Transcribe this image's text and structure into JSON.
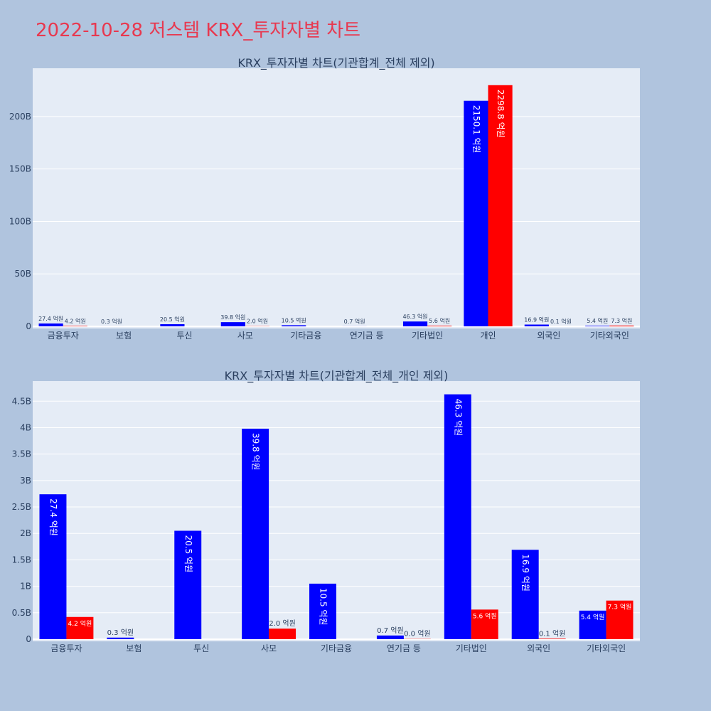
{
  "page_title": "2022-10-28 저스템 KRX_투자자별 차트",
  "colors": {
    "background": "#b0c4de",
    "plot_bg": "#e5ecf6",
    "buy": "#0000ff",
    "sell": "#ff0000",
    "title": "#e8384f",
    "text": "#2a3f5f"
  },
  "chart_data": [
    {
      "type": "bar",
      "title": "KRX_투자자별 차트(기관합계_전체 제외)",
      "categories": [
        "금융투자",
        "보험",
        "투신",
        "사모",
        "기타금융",
        "연기금 등",
        "기타법인",
        "개인",
        "외국인",
        "기타외국인"
      ],
      "series": [
        {
          "color": "#0000ff",
          "values": [
            2.74,
            0.03,
            2.05,
            3.98,
            1.05,
            0.07,
            4.63,
            215.01,
            1.69,
            0.54
          ],
          "labels": [
            "27.4 억원",
            "0.3 억원",
            "20.5 억원",
            "39.8 억원",
            "10.5 억원",
            "0.7 억원",
            "46.3 억원",
            "2150.1 억원",
            "16.9 억원",
            "5.4 억원"
          ]
        },
        {
          "color": "#ff0000",
          "values": [
            0.42,
            0,
            0,
            0.2,
            0,
            0,
            0.56,
            229.88,
            0.01,
            0.73
          ],
          "labels": [
            "4.2 억원",
            "",
            "",
            "2.0 억원",
            "",
            "",
            "5.6 억원",
            "2298.8 억원",
            "0.1 억원",
            "7.3 억원"
          ]
        }
      ],
      "yticks": [
        0,
        50,
        100,
        150,
        200
      ],
      "ytick_labels": [
        "0",
        "50B",
        "100B",
        "150B",
        "200B"
      ],
      "ylim": [
        0,
        246
      ],
      "grid": true
    },
    {
      "type": "bar",
      "title": "KRX_투자자별 차트(기관합계_전체_개인 제외)",
      "categories": [
        "금융투자",
        "보험",
        "투신",
        "사모",
        "기타금융",
        "연기금 등",
        "기타법인",
        "외국인",
        "기타외국인"
      ],
      "series": [
        {
          "color": "#0000ff",
          "values": [
            2.74,
            0.03,
            2.05,
            3.98,
            1.05,
            0.07,
            4.63,
            1.69,
            0.54
          ],
          "labels": [
            "27.4 억원",
            "0.3 억원",
            "20.5 억원",
            "39.8 억원",
            "10.5 억원",
            "0.7 억원",
            "46.3 억원",
            "16.9 억원",
            "5.4 억원"
          ]
        },
        {
          "color": "#ff0000",
          "values": [
            0.42,
            0,
            0,
            0.2,
            0,
            0.004,
            0.56,
            0.01,
            0.73
          ],
          "labels": [
            "4.2 억원",
            "",
            "",
            "2.0 억원",
            "",
            "0.0 억원",
            "5.6 억원",
            "0.1 억원",
            "7.3 억원"
          ]
        }
      ],
      "yticks": [
        0,
        0.5,
        1,
        1.5,
        2,
        2.5,
        3,
        3.5,
        4,
        4.5
      ],
      "ytick_labels": [
        "0",
        "0.5B",
        "1B",
        "1.5B",
        "2B",
        "2.5B",
        "3B",
        "3.5B",
        "4B",
        "4.5B"
      ],
      "ylim": [
        0,
        4.88
      ],
      "grid": true
    }
  ]
}
